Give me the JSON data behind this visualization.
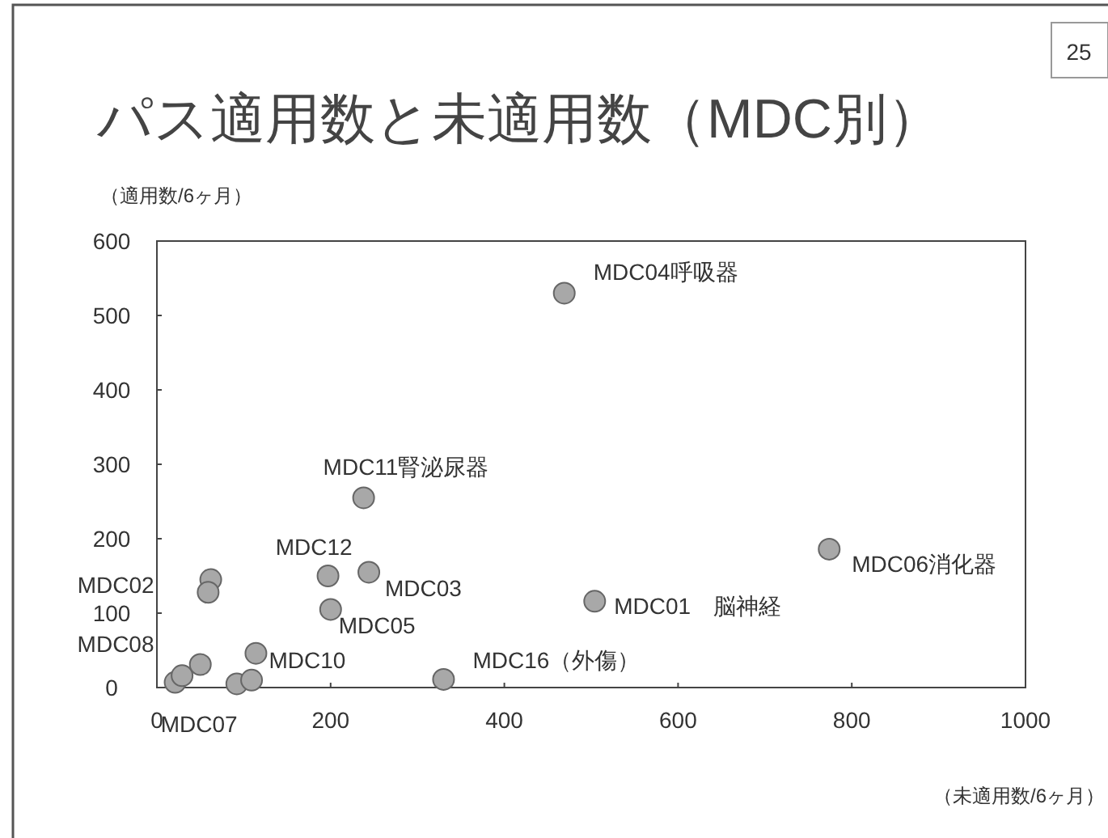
{
  "chart_data": {
    "type": "scatter",
    "title": "パス適用数と未適用数（MDC別）",
    "xlabel": "（未適用数/6ヶ月）",
    "ylabel": "（適用数/6ヶ月）",
    "series": [
      {
        "color": "#a8a8a8",
        "x": [
          469,
          238,
          197,
          244,
          200,
          62,
          59,
          21,
          29,
          50,
          92,
          109,
          114,
          330,
          504,
          774
        ],
        "values": [
          530,
          255,
          150,
          155,
          105,
          145,
          128,
          7,
          16,
          31,
          5,
          10,
          46,
          11,
          116,
          186
        ]
      }
    ],
    "xlim": [
      0,
      1000
    ],
    "xticks": [
      0,
      200,
      400,
      600,
      800,
      1000
    ],
    "ylim": [
      0,
      600
    ],
    "yticks": [
      0,
      100,
      200,
      300,
      400,
      500,
      600
    ],
    "grid": false,
    "marker": "circle",
    "annotations": [
      {
        "text": "MDC04呼吸器",
        "x": 469,
        "y": 530
      },
      {
        "text": "MDC11腎泌尿器",
        "x": 238,
        "y": 255
      },
      {
        "text": "MDC12",
        "x": 197,
        "y": 150
      },
      {
        "text": "MDC03",
        "x": 244,
        "y": 155
      },
      {
        "text": "MDC05",
        "x": 200,
        "y": 105
      },
      {
        "text": "MDC02",
        "x": 62,
        "y": 145
      },
      {
        "text": "MDC08",
        "x": 21,
        "y": 7
      },
      {
        "text": "MDC07",
        "x": 92,
        "y": 5
      },
      {
        "text": "MDC10",
        "x": 114,
        "y": 46
      },
      {
        "text": "MDC16（外傷）",
        "x": 330,
        "y": 11
      },
      {
        "text": "MDC01　脳神経",
        "x": 504,
        "y": 116
      },
      {
        "text": "MDC06消化器",
        "x": 774,
        "y": 186
      },
      "25"
    ]
  }
}
